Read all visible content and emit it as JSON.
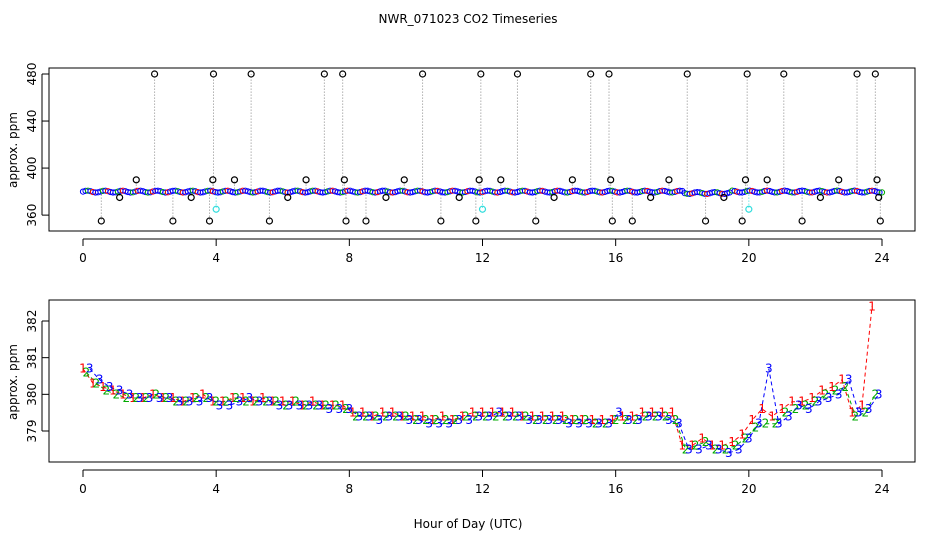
{
  "title": "NWR_071023  CO2 Timeseries",
  "xlabel": "Hour of Day (UTC)",
  "colors": {
    "black": "#000000",
    "blue": "#0000ff",
    "red": "#ff0000",
    "green": "#00aa00",
    "cyan": "#33dddd",
    "grey": "#888888",
    "orange": "#dd8800"
  },
  "chart_data": [
    {
      "type": "scatter",
      "panel": "top",
      "ylabel": "approx. ppm",
      "xlim": [
        -1,
        25
      ],
      "ylim": [
        350,
        485
      ],
      "xticks": [
        0,
        4,
        8,
        12,
        16,
        20,
        24
      ],
      "yticks": [
        360,
        400,
        440,
        480
      ],
      "baseline_mean": 380,
      "outlier_points": [
        {
          "x": 0.55,
          "y": 355
        },
        {
          "x": 1.1,
          "y": 375
        },
        {
          "x": 1.6,
          "y": 390
        },
        {
          "x": 2.15,
          "y": 480
        },
        {
          "x": 2.7,
          "y": 355
        },
        {
          "x": 3.25,
          "y": 375
        },
        {
          "x": 3.8,
          "y": 355
        },
        {
          "x": 3.9,
          "y": 390
        },
        {
          "x": 3.92,
          "y": 480
        },
        {
          "x": 4.55,
          "y": 390
        },
        {
          "x": 5.05,
          "y": 480
        },
        {
          "x": 5.6,
          "y": 355
        },
        {
          "x": 6.15,
          "y": 375
        },
        {
          "x": 6.7,
          "y": 390
        },
        {
          "x": 7.25,
          "y": 480
        },
        {
          "x": 7.8,
          "y": 480
        },
        {
          "x": 7.85,
          "y": 390
        },
        {
          "x": 7.9,
          "y": 355
        },
        {
          "x": 8.5,
          "y": 355
        },
        {
          "x": 9.1,
          "y": 375
        },
        {
          "x": 9.65,
          "y": 390
        },
        {
          "x": 10.2,
          "y": 480
        },
        {
          "x": 10.75,
          "y": 355
        },
        {
          "x": 11.3,
          "y": 375
        },
        {
          "x": 11.8,
          "y": 355
        },
        {
          "x": 11.9,
          "y": 390
        },
        {
          "x": 11.95,
          "y": 480
        },
        {
          "x": 12.55,
          "y": 390
        },
        {
          "x": 13.05,
          "y": 480
        },
        {
          "x": 13.6,
          "y": 355
        },
        {
          "x": 14.15,
          "y": 375
        },
        {
          "x": 14.7,
          "y": 390
        },
        {
          "x": 15.25,
          "y": 480
        },
        {
          "x": 15.8,
          "y": 480
        },
        {
          "x": 15.85,
          "y": 390
        },
        {
          "x": 15.9,
          "y": 355
        },
        {
          "x": 16.5,
          "y": 355
        },
        {
          "x": 17.05,
          "y": 375
        },
        {
          "x": 17.6,
          "y": 390
        },
        {
          "x": 18.15,
          "y": 480
        },
        {
          "x": 18.7,
          "y": 355
        },
        {
          "x": 19.25,
          "y": 375
        },
        {
          "x": 19.8,
          "y": 355
        },
        {
          "x": 19.9,
          "y": 390
        },
        {
          "x": 19.95,
          "y": 480
        },
        {
          "x": 20.55,
          "y": 390
        },
        {
          "x": 21.05,
          "y": 480
        },
        {
          "x": 21.6,
          "y": 355
        },
        {
          "x": 22.15,
          "y": 375
        },
        {
          "x": 22.7,
          "y": 390
        },
        {
          "x": 23.25,
          "y": 480
        },
        {
          "x": 23.8,
          "y": 480
        },
        {
          "x": 23.85,
          "y": 390
        },
        {
          "x": 23.9,
          "y": 375
        },
        {
          "x": 23.95,
          "y": 355
        }
      ],
      "cyan_points": [
        {
          "x": 4.0,
          "y": 365
        },
        {
          "x": 12.0,
          "y": 365
        },
        {
          "x": 20.0,
          "y": 365
        }
      ]
    },
    {
      "type": "line",
      "panel": "bottom",
      "ylabel": "approx. ppm",
      "xlim": [
        -1,
        25
      ],
      "ylim": [
        378.3,
        382.6
      ],
      "xticks": [
        0,
        4,
        8,
        12,
        16,
        20,
        24
      ],
      "yticks": [
        379,
        380,
        381,
        382
      ],
      "series": [
        {
          "marker": "1",
          "color": "#ff0000",
          "x": [
            0.0,
            0.3,
            0.6,
            0.9,
            1.2,
            1.5,
            1.8,
            2.1,
            2.4,
            2.7,
            3.0,
            3.3,
            3.6,
            3.9,
            4.2,
            4.5,
            4.8,
            5.1,
            5.4,
            5.7,
            6.0,
            6.3,
            6.6,
            6.9,
            7.2,
            7.5,
            7.8,
            8.1,
            8.4,
            8.7,
            9.0,
            9.3,
            9.6,
            9.9,
            10.2,
            10.5,
            10.8,
            11.1,
            11.4,
            11.7,
            12.0,
            12.3,
            12.6,
            12.9,
            13.2,
            13.5,
            13.8,
            14.1,
            14.4,
            14.7,
            15.0,
            15.3,
            15.6,
            15.9,
            16.2,
            16.5,
            16.8,
            17.1,
            17.4,
            17.7,
            18.0,
            18.3,
            18.6,
            18.9,
            19.2,
            19.5,
            19.8,
            20.1,
            20.4,
            20.7,
            21.0,
            21.3,
            21.6,
            21.9,
            22.2,
            22.5,
            22.8,
            23.1,
            23.4,
            23.7
          ],
          "y": [
            380.7,
            380.3,
            380.2,
            380.1,
            380.0,
            379.9,
            379.9,
            380.0,
            379.9,
            379.9,
            379.8,
            379.9,
            380.0,
            379.8,
            379.8,
            379.9,
            379.9,
            379.8,
            379.9,
            379.8,
            379.8,
            379.8,
            379.7,
            379.8,
            379.7,
            379.7,
            379.7,
            379.5,
            379.5,
            379.4,
            379.5,
            379.5,
            379.4,
            379.4,
            379.4,
            379.3,
            379.4,
            379.3,
            379.4,
            379.5,
            379.5,
            379.5,
            379.5,
            379.5,
            379.4,
            379.4,
            379.4,
            379.4,
            379.4,
            379.3,
            379.3,
            379.3,
            379.3,
            379.3,
            379.4,
            379.4,
            379.5,
            379.5,
            379.5,
            379.5,
            378.6,
            378.6,
            378.8,
            378.6,
            378.6,
            378.7,
            378.9,
            379.3,
            379.6,
            379.4,
            379.6,
            379.8,
            379.8,
            379.9,
            380.1,
            380.2,
            380.4,
            379.5,
            379.7,
            382.4
          ]
        },
        {
          "marker": "2",
          "color": "#00aa00",
          "x": [
            0.1,
            0.4,
            0.7,
            1.0,
            1.3,
            1.6,
            1.9,
            2.2,
            2.5,
            2.8,
            3.1,
            3.4,
            3.7,
            4.0,
            4.3,
            4.6,
            4.9,
            5.2,
            5.5,
            5.8,
            6.1,
            6.4,
            6.7,
            7.0,
            7.3,
            7.6,
            7.9,
            8.2,
            8.5,
            8.8,
            9.1,
            9.4,
            9.7,
            10.0,
            10.3,
            10.6,
            10.9,
            11.2,
            11.5,
            11.8,
            12.1,
            12.4,
            12.7,
            13.0,
            13.3,
            13.6,
            13.9,
            14.2,
            14.5,
            14.8,
            15.1,
            15.4,
            15.7,
            16.0,
            16.3,
            16.6,
            16.9,
            17.2,
            17.5,
            17.8,
            18.1,
            18.4,
            18.7,
            19.0,
            19.3,
            19.6,
            19.9,
            20.2,
            20.5,
            20.8,
            21.1,
            21.4,
            21.7,
            22.0,
            22.3,
            22.6,
            22.9,
            23.2,
            23.5,
            23.8
          ],
          "y": [
            380.6,
            380.3,
            380.1,
            380.0,
            379.9,
            379.9,
            379.9,
            380.0,
            379.9,
            379.8,
            379.8,
            379.9,
            379.9,
            379.8,
            379.8,
            379.9,
            379.8,
            379.8,
            379.8,
            379.8,
            379.7,
            379.8,
            379.7,
            379.7,
            379.7,
            379.7,
            379.6,
            379.4,
            379.4,
            379.4,
            379.4,
            379.4,
            379.4,
            379.3,
            379.3,
            379.3,
            379.3,
            379.3,
            379.4,
            379.4,
            379.4,
            379.4,
            379.4,
            379.4,
            379.4,
            379.3,
            379.3,
            379.3,
            379.3,
            379.3,
            379.3,
            379.2,
            379.2,
            379.3,
            379.3,
            379.3,
            379.4,
            379.4,
            379.4,
            379.3,
            378.5,
            378.6,
            378.7,
            378.5,
            378.5,
            378.6,
            378.8,
            379.1,
            379.2,
            379.2,
            379.5,
            379.6,
            379.7,
            379.8,
            380.0,
            380.1,
            380.2,
            379.4,
            379.5,
            380.0
          ]
        },
        {
          "marker": "3",
          "color": "#0000ff",
          "x": [
            0.2,
            0.5,
            0.8,
            1.1,
            1.4,
            1.7,
            2.0,
            2.3,
            2.6,
            2.9,
            3.2,
            3.5,
            3.8,
            4.1,
            4.4,
            4.7,
            5.0,
            5.3,
            5.6,
            5.9,
            6.2,
            6.5,
            6.8,
            7.1,
            7.4,
            7.7,
            8.0,
            8.3,
            8.6,
            8.9,
            9.2,
            9.5,
            9.8,
            10.1,
            10.4,
            10.7,
            11.0,
            11.3,
            11.6,
            11.9,
            12.2,
            12.5,
            12.8,
            13.1,
            13.4,
            13.7,
            14.0,
            14.3,
            14.6,
            14.9,
            15.2,
            15.5,
            15.8,
            16.1,
            16.4,
            16.7,
            17.0,
            17.3,
            17.6,
            17.9,
            18.2,
            18.5,
            18.8,
            19.1,
            19.4,
            19.7,
            20.0,
            20.3,
            20.6,
            20.9,
            21.2,
            21.5,
            21.8,
            22.1,
            22.4,
            22.7,
            23.0,
            23.3,
            23.6,
            23.9
          ],
          "y": [
            380.7,
            380.4,
            380.2,
            380.1,
            380.0,
            379.9,
            379.9,
            379.9,
            379.9,
            379.8,
            379.8,
            379.8,
            379.9,
            379.7,
            379.7,
            379.8,
            379.9,
            379.8,
            379.8,
            379.7,
            379.7,
            379.7,
            379.7,
            379.7,
            379.6,
            379.6,
            379.6,
            379.4,
            379.4,
            379.3,
            379.4,
            379.4,
            379.3,
            379.3,
            379.2,
            379.2,
            379.2,
            379.3,
            379.3,
            379.4,
            379.4,
            379.5,
            379.4,
            379.4,
            379.3,
            379.3,
            379.3,
            379.3,
            379.2,
            379.2,
            379.2,
            379.2,
            379.2,
            379.5,
            379.3,
            379.3,
            379.4,
            379.4,
            379.3,
            379.2,
            378.5,
            378.5,
            378.6,
            378.5,
            378.4,
            378.5,
            378.8,
            379.2,
            380.7,
            379.2,
            379.4,
            379.7,
            379.6,
            379.8,
            379.9,
            380.0,
            380.4,
            379.5,
            379.6,
            380.0
          ]
        }
      ]
    }
  ]
}
